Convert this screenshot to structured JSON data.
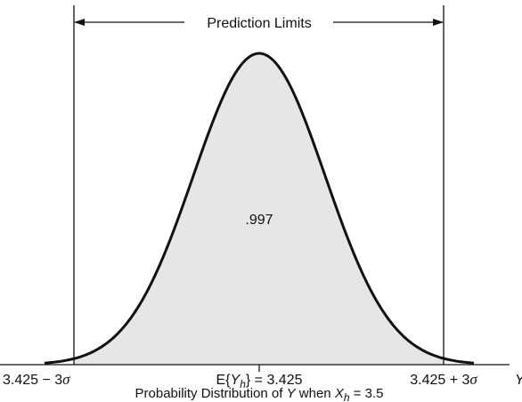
{
  "title": "Prediction Limits",
  "area_label": ".997",
  "axis_labels": {
    "left": [
      "3.425 − 3",
      "σ"
    ],
    "center": [
      "E{",
      "Y",
      "h",
      "} = 3.425"
    ],
    "right": [
      "3.425 + 3",
      "σ"
    ],
    "axis_name": "Y"
  },
  "caption": [
    "Probability Distribution of ",
    "Y",
    " when ",
    "X",
    "h",
    " = 3.5"
  ]
}
